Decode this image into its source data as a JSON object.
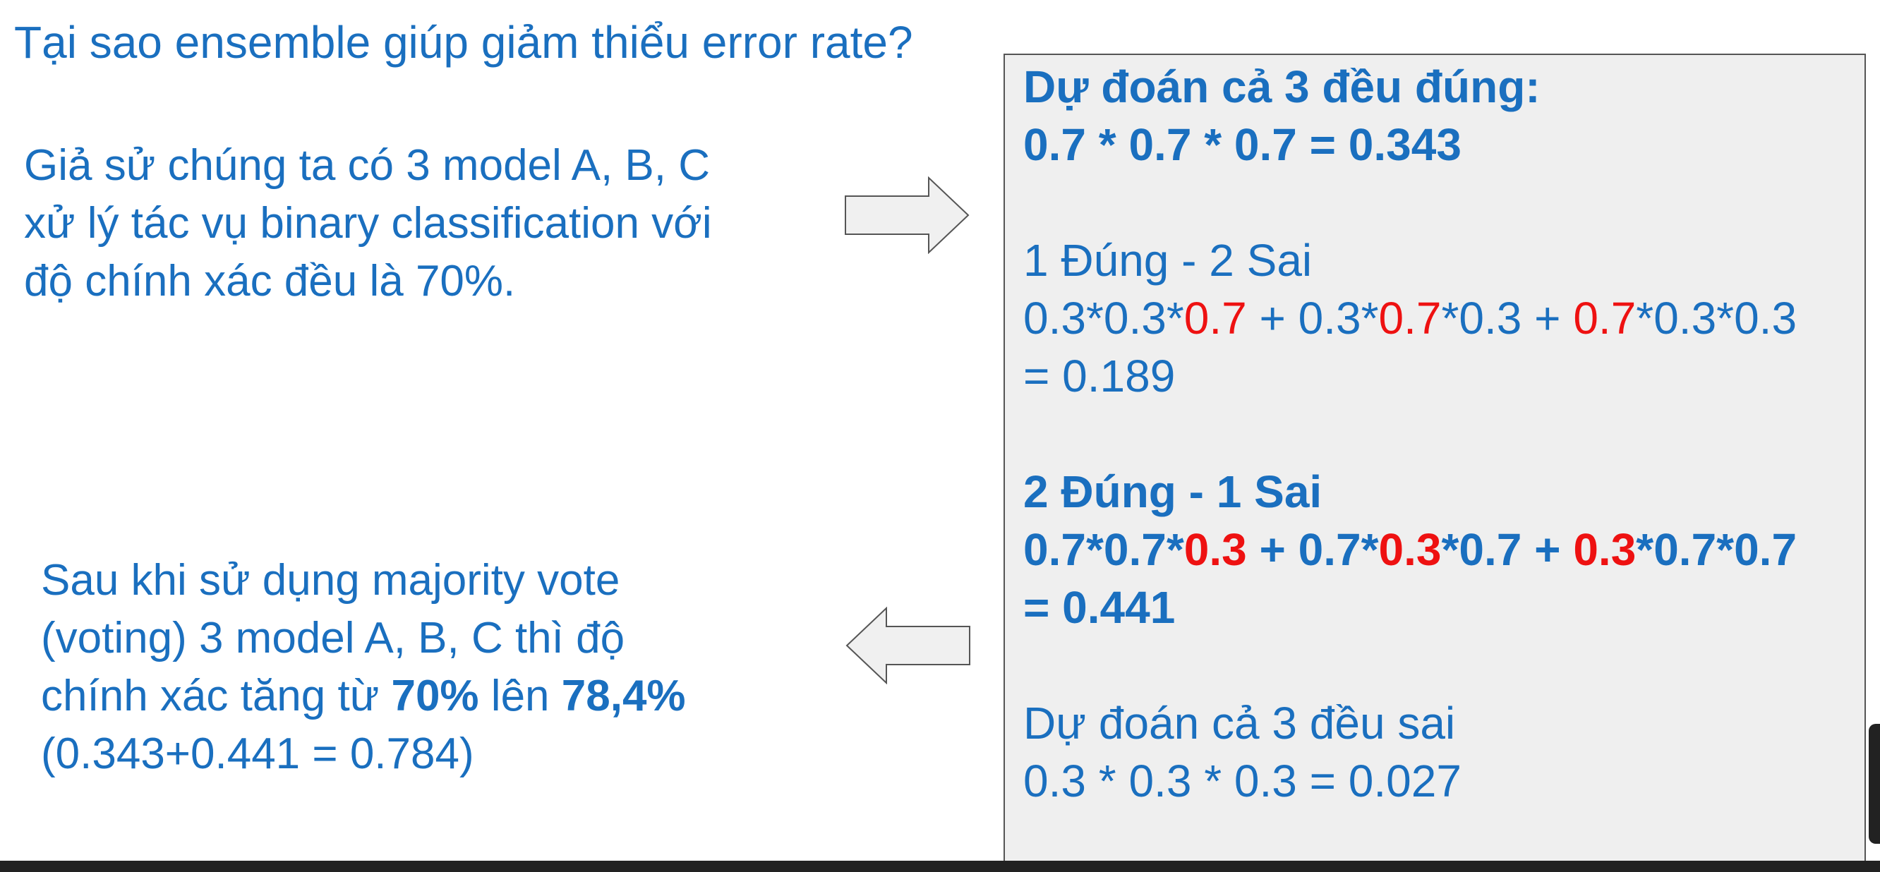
{
  "title": "Tại sao ensemble giúp giảm thiểu error rate?",
  "premise": {
    "line1": "Giả sử chúng ta có 3 model A, B, C",
    "line2": "xử lý tác vụ binary classification với",
    "line3": "độ chính xác đều là 70%."
  },
  "conclusion": {
    "line1": "Sau khi sử dụng majority vote",
    "line2": "(voting) 3 model A, B, C thì độ",
    "line3_pre": "chính xác tăng từ ",
    "line3_from": "70%",
    "line3_mid": " lên ",
    "line3_to": "78,4%",
    "line4": "(0.343+0.441 = 0.784)"
  },
  "calc": {
    "all_correct": {
      "heading": "Dự đoán cả 3 đều đúng:",
      "formula": "0.7 * 0.7 * 0.7 = 0.343"
    },
    "one_correct": {
      "heading": "1 Đúng - 2 Sai",
      "f1": "0.3*0.3*",
      "r1": "0.7",
      "f2": " + 0.3*",
      "r2": "0.7",
      "f3": "*0.3 + ",
      "r3": "0.7",
      "f4": "*0.3*0.3",
      "result": "= 0.189"
    },
    "two_correct": {
      "heading": "2 Đúng - 1 Sai",
      "f1": "0.7*0.7*",
      "r1": "0.3",
      "f2": " + 0.7*",
      "r2": "0.3",
      "f3": "*0.7 + ",
      "r3": "0.3",
      "f4": "*0.7*0.7",
      "result": "= 0.441"
    },
    "all_wrong": {
      "heading": "Dự đoán cả 3 đều sai",
      "formula": "0.3 * 0.3 * 0.3 = 0.027"
    }
  },
  "colors": {
    "text": "#1a6fbf",
    "highlight": "#ee1111",
    "box_bg": "#efefef",
    "arrow_fill": "#f0f0f0",
    "arrow_stroke": "#555555"
  },
  "icons": {
    "arrow_right": "arrow-right-icon",
    "arrow_left": "arrow-left-icon"
  }
}
